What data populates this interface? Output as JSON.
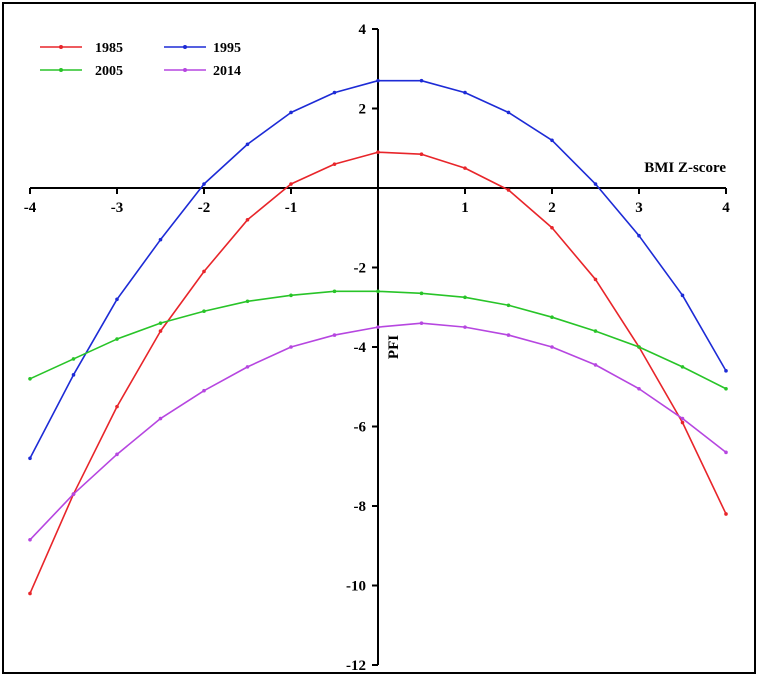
{
  "chart_data": {
    "type": "line",
    "xlabel": "BMI Z-score",
    "ylabel": "PFI",
    "xlim": [
      -4,
      4
    ],
    "ylim": [
      -12,
      4
    ],
    "x_ticks": [
      -4,
      -3,
      -2,
      -1,
      1,
      2,
      3,
      4
    ],
    "x_tick_labels": [
      "-4",
      "-3",
      "-2",
      "-1",
      "1",
      "2",
      "3",
      "4"
    ],
    "y_ticks": [
      4,
      2,
      -2,
      -4,
      -6,
      -8,
      -10,
      -12
    ],
    "y_tick_labels": [
      "4",
      "2",
      "-2",
      "-4",
      "-6",
      "-8",
      "-10",
      "-12"
    ],
    "grid": false,
    "legend_position": "top-left",
    "x": [
      -4,
      -3.5,
      -3,
      -2.5,
      -2,
      -1.5,
      -1,
      -0.5,
      0,
      0.5,
      1,
      1.5,
      2,
      2.5,
      3,
      3.5,
      4
    ],
    "series": [
      {
        "name": "1985",
        "color": "#e8252a",
        "values": [
          -10.2,
          -7.7,
          -5.5,
          -3.6,
          -2.1,
          -0.8,
          0.1,
          0.6,
          0.9,
          0.85,
          0.5,
          -0.05,
          -1.0,
          -2.3,
          -4.0,
          -5.9,
          -8.2
        ]
      },
      {
        "name": "1995",
        "color": "#1d2bd6",
        "values": [
          -6.8,
          -4.7,
          -2.8,
          -1.3,
          0.1,
          1.1,
          1.9,
          2.4,
          2.7,
          2.7,
          2.4,
          1.9,
          1.2,
          0.1,
          -1.2,
          -2.7,
          -4.6
        ]
      },
      {
        "name": "2005",
        "color": "#28c428",
        "values": [
          -4.8,
          -4.3,
          -3.8,
          -3.4,
          -3.1,
          -2.85,
          -2.7,
          -2.6,
          -2.6,
          -2.65,
          -2.75,
          -2.95,
          -3.25,
          -3.6,
          -4.0,
          -4.5,
          -5.05
        ]
      },
      {
        "name": "2014",
        "color": "#b646e0",
        "values": [
          -8.85,
          -7.7,
          -6.7,
          -5.8,
          -5.1,
          -4.5,
          -4.0,
          -3.7,
          -3.5,
          -3.4,
          -3.5,
          -3.7,
          -4.0,
          -4.45,
          -5.05,
          -5.8,
          -6.65
        ]
      }
    ]
  }
}
